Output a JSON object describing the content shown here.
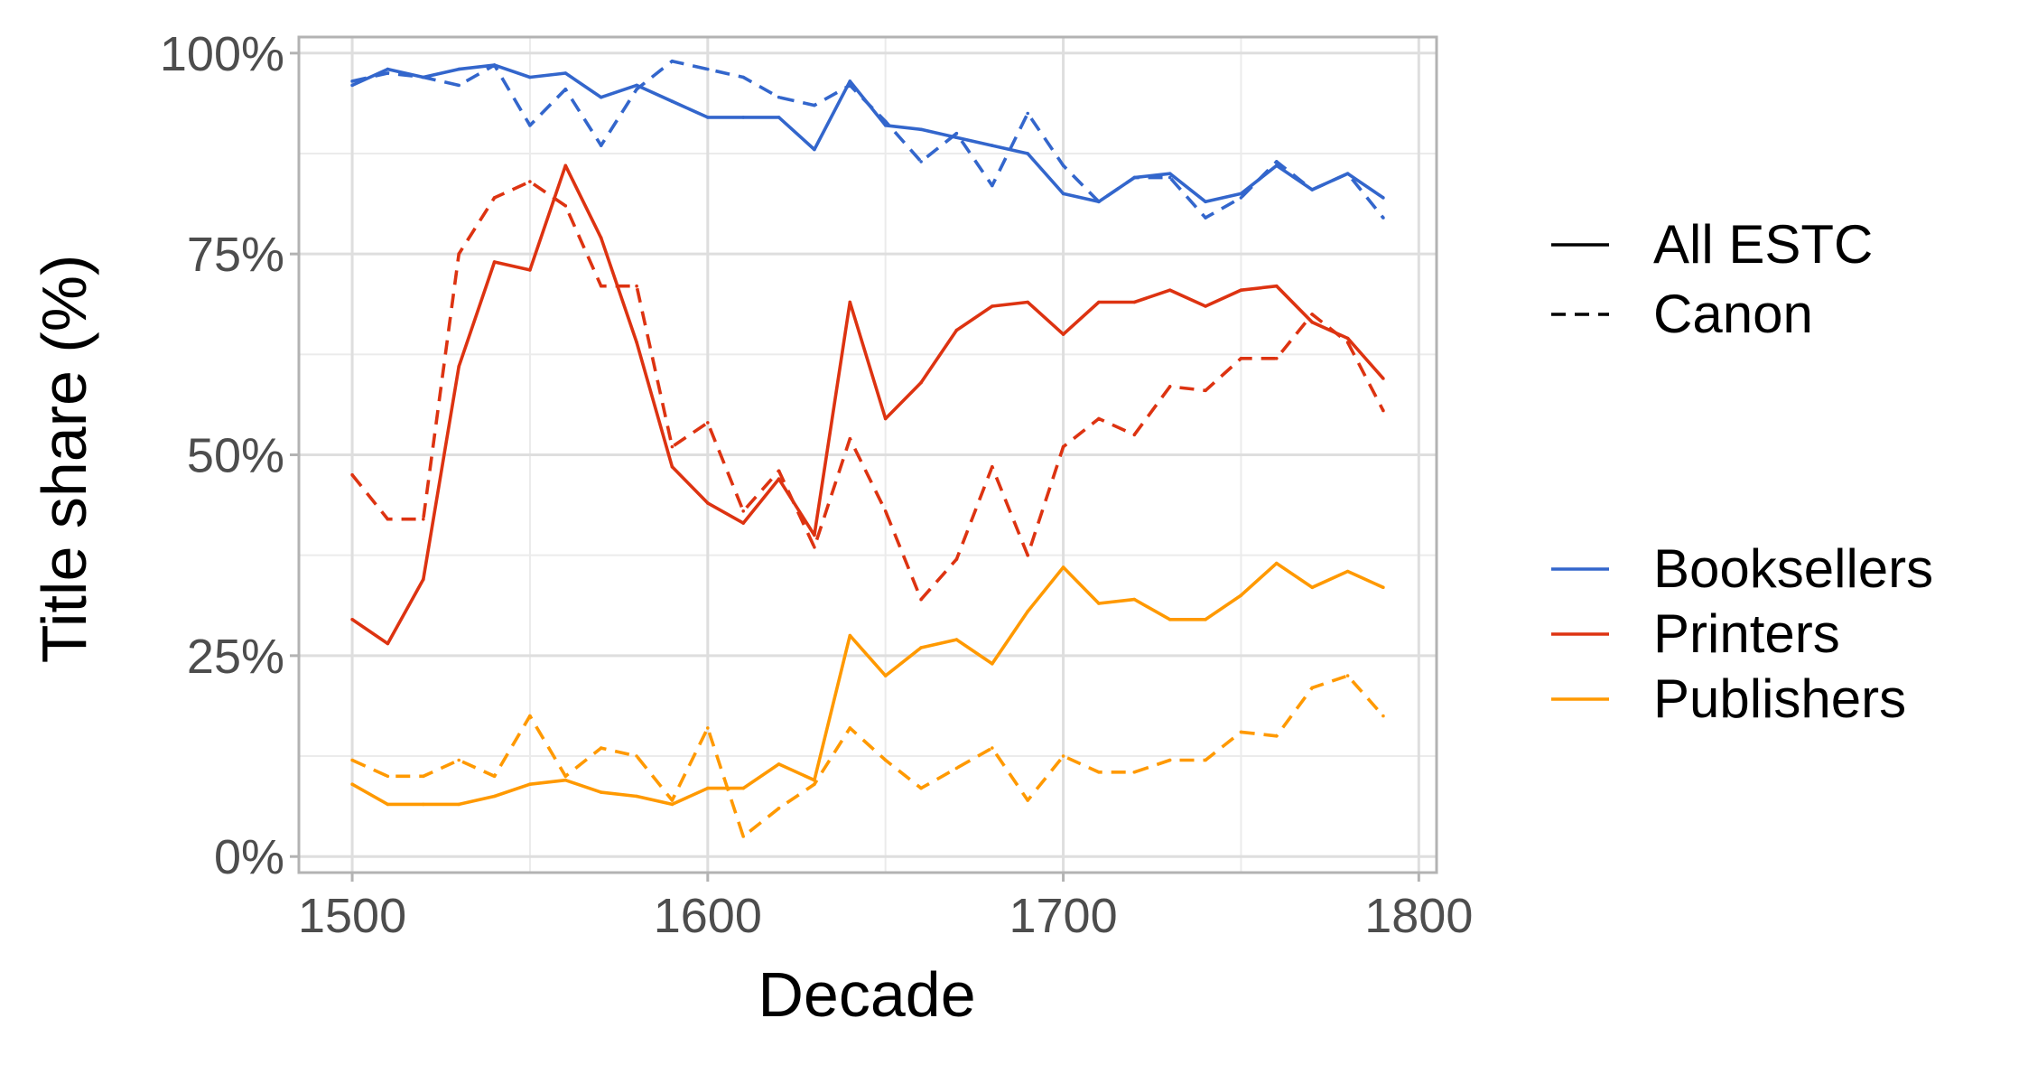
{
  "chart_data": {
    "type": "line",
    "xlabel": "Decade",
    "ylabel": "Title share (%)",
    "xlim": [
      1485,
      1805
    ],
    "ylim": [
      -2,
      102
    ],
    "grid": true,
    "x_ticks": [
      1500,
      1600,
      1700,
      1800
    ],
    "x_tick_labels": [
      "1500",
      "1600",
      "1700",
      "1800"
    ],
    "y_ticks": [
      0,
      25,
      50,
      75,
      100
    ],
    "y_tick_labels": [
      "0%",
      "25%",
      "50%",
      "75%",
      "100%"
    ],
    "legend_placement": "right",
    "linetype_legend": [
      {
        "label": "All ESTC",
        "dash": "solid"
      },
      {
        "label": "Canon",
        "dash": "dashed"
      }
    ],
    "color_legend": [
      {
        "label": "Booksellers",
        "color": "#3366cc"
      },
      {
        "label": "Printers",
        "color": "#dd3311"
      },
      {
        "label": "Publishers",
        "color": "#ff9900"
      }
    ],
    "x": [
      1500,
      1510,
      1520,
      1530,
      1540,
      1550,
      1560,
      1570,
      1580,
      1590,
      1600,
      1610,
      1620,
      1630,
      1640,
      1650,
      1660,
      1670,
      1680,
      1690,
      1700,
      1710,
      1720,
      1730,
      1740,
      1750,
      1760,
      1770,
      1780,
      1790
    ],
    "series": [
      {
        "group": "Booksellers",
        "linetype": "All ESTC",
        "color": "#3366cc",
        "dash": "solid",
        "values": [
          96,
          98,
          97,
          98,
          98.5,
          97,
          97.5,
          94.5,
          96,
          94,
          92,
          92,
          92,
          88,
          96.5,
          91,
          90.5,
          89.5,
          88.5,
          87.5,
          82.5,
          81.5,
          84.5,
          85,
          81.5,
          82.5,
          86,
          83,
          85,
          82
        ]
      },
      {
        "group": "Booksellers",
        "linetype": "Canon",
        "color": "#3366cc",
        "dash": "dashed",
        "values": [
          96.5,
          97.5,
          97,
          96,
          98.5,
          91,
          95.5,
          88.5,
          95.5,
          99,
          98,
          97,
          94.5,
          93.5,
          96,
          91.5,
          86.5,
          90,
          83.5,
          92.5,
          86,
          81.5,
          84.5,
          84.5,
          79.5,
          82,
          86.5,
          83,
          85,
          79.5
        ]
      },
      {
        "group": "Printers",
        "linetype": "All ESTC",
        "color": "#dd3311",
        "dash": "solid",
        "values": [
          29.5,
          26.5,
          34.5,
          61,
          74,
          73,
          86,
          77,
          64,
          48.5,
          44,
          41.5,
          47,
          40,
          69,
          54.5,
          59,
          65.5,
          68.5,
          69,
          65,
          69,
          69,
          70.5,
          68.5,
          70.5,
          71,
          66.5,
          64.5,
          59.5
        ]
      },
      {
        "group": "Printers",
        "linetype": "Canon",
        "color": "#dd3311",
        "dash": "dashed",
        "values": [
          47.5,
          42,
          42,
          75,
          82,
          84,
          81,
          71,
          71,
          51,
          54,
          43,
          48,
          38.5,
          52,
          43,
          32,
          37,
          48.5,
          37.5,
          51,
          54.5,
          52.5,
          58.5,
          58,
          62,
          62,
          67.5,
          64,
          55.5
        ]
      },
      {
        "group": "Publishers",
        "linetype": "All ESTC",
        "color": "#ff9900",
        "dash": "solid",
        "values": [
          9,
          6.5,
          6.5,
          6.5,
          7.5,
          9,
          9.5,
          8,
          7.5,
          6.5,
          8.5,
          8.5,
          11.5,
          9.5,
          27.5,
          22.5,
          26,
          27,
          24,
          30.5,
          36,
          31.5,
          32,
          29.5,
          29.5,
          32.5,
          36.5,
          33.5,
          35.5,
          33.5
        ]
      },
      {
        "group": "Publishers",
        "linetype": "Canon",
        "color": "#ff9900",
        "dash": "dashed",
        "values": [
          12,
          10,
          10,
          12,
          10,
          17.5,
          10,
          13.5,
          12.5,
          7,
          16,
          2.5,
          6,
          9,
          16,
          12,
          8.5,
          11,
          13.5,
          7,
          12.5,
          10.5,
          10.5,
          12,
          12,
          15.5,
          15,
          21,
          22.5,
          17.5
        ]
      }
    ]
  }
}
